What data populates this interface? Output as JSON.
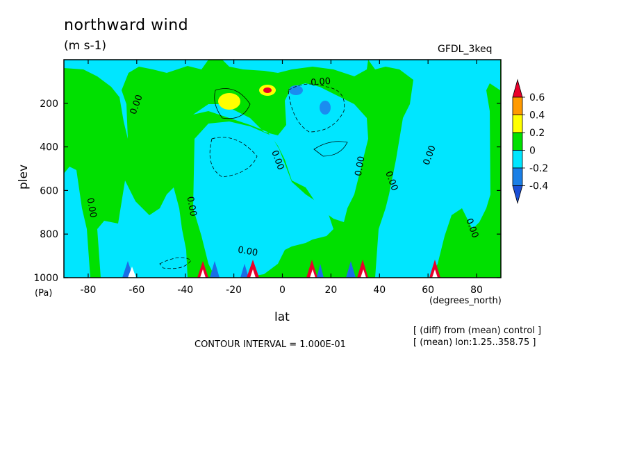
{
  "chart_data": {
    "type": "heatmap",
    "title": "northward wind",
    "units": "(m s-1)",
    "model": "GFDL_3keq",
    "xlabel": "lat",
    "xunits": "(degrees_north)",
    "ylabel": "plev",
    "yunits": "(Pa)",
    "xlim": [
      -90,
      90
    ],
    "ylim": [
      1000,
      0
    ],
    "x_ticks": [
      -80,
      -60,
      -40,
      -20,
      0,
      20,
      40,
      60,
      80
    ],
    "x_tick_labels": [
      "-80",
      "-60",
      "-40",
      "-20",
      "0",
      "20",
      "40",
      "60",
      "80"
    ],
    "y_ticks": [
      200,
      400,
      600,
      800,
      1000
    ],
    "y_tick_labels": [
      "200",
      "400",
      "600",
      "800",
      "1000"
    ],
    "contour_interval": "CONTOUR INTERVAL = 1.000E-01",
    "contour_label": "0.00",
    "notes": [
      "[ (diff) from (mean) control ]",
      "[ (mean) lon:1.25..358.75 ]"
    ],
    "colorbar": {
      "labels": [
        "0.6",
        "0.4",
        "0.2",
        "0",
        "-0.2",
        "-0.4"
      ],
      "colors": [
        "#e8002a",
        "#ff9a00",
        "#ffff00",
        "#00e000",
        "#00e6ff",
        "#1a7fe6",
        "#1a4fd6"
      ]
    },
    "colors": {
      "positive": "#00e000",
      "negative": "#00e6ff",
      "strong_negative": "#1a8cf0",
      "weak_positive": "#ffff00",
      "strong_positive": "#e8002a"
    }
  }
}
